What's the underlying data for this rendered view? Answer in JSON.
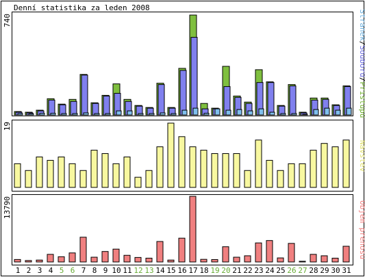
{
  "chart_data": [
    {
      "type": "bar",
      "title": "Denní statistika za leden 2008",
      "categories": [
        "1",
        "2",
        "3",
        "4",
        "5",
        "6",
        "7",
        "8",
        "9",
        "10",
        "11",
        "12",
        "13",
        "14",
        "15",
        "16",
        "17",
        "18",
        "19",
        "20",
        "21",
        "22",
        "23",
        "24",
        "25",
        "26",
        "27",
        "28",
        "29",
        "30",
        "31"
      ],
      "weekend_days": [
        "5",
        "6",
        "12",
        "13",
        "19",
        "20",
        "26",
        "27"
      ],
      "y_top_label": "740",
      "ylim": [
        0,
        740
      ],
      "series": [
        {
          "name": "Přístupů",
          "color": "#7fbf3f",
          "values": [
            25,
            20,
            35,
            120,
            80,
            115,
            300,
            90,
            145,
            230,
            115,
            70,
            55,
            235,
            55,
            345,
            740,
            85,
            50,
            360,
            140,
            95,
            335,
            245,
            70,
            225,
            20,
            125,
            125,
            75,
            215
          ]
        },
        {
          "name": "Souborů",
          "color": "#8080ee",
          "values": [
            20,
            15,
            30,
            110,
            75,
            100,
            295,
            85,
            140,
            160,
            100,
            65,
            50,
            225,
            50,
            330,
            575,
            45,
            45,
            210,
            130,
            85,
            240,
            240,
            65,
            215,
            15,
            110,
            115,
            70,
            210
          ]
        },
        {
          "name": "Stránek",
          "color": "#80c0ee",
          "values": [
            10,
            8,
            12,
            12,
            10,
            10,
            15,
            10,
            10,
            30,
            30,
            10,
            10,
            15,
            10,
            35,
            50,
            12,
            45,
            35,
            40,
            30,
            45,
            20,
            10,
            10,
            5,
            40,
            50,
            35,
            50
          ]
        }
      ],
      "legend_text": [
        "Stránek",
        "Souborů",
        "Přístupů"
      ]
    },
    {
      "type": "bar",
      "categories": [
        "1",
        "2",
        "3",
        "4",
        "5",
        "6",
        "7",
        "8",
        "9",
        "10",
        "11",
        "12",
        "13",
        "14",
        "15",
        "16",
        "17",
        "18",
        "19",
        "20",
        "21",
        "22",
        "23",
        "24",
        "25",
        "26",
        "27",
        "28",
        "29",
        "30",
        "31"
      ],
      "y_top_label": "19",
      "ylim": [
        0,
        19
      ],
      "series": [
        {
          "name": "Návštěv",
          "color": "#f8f8a0",
          "values": [
            7,
            5,
            9,
            8,
            9,
            7,
            5,
            11,
            10,
            7,
            9,
            3,
            5,
            12,
            19,
            15,
            12,
            11,
            10,
            10,
            10,
            5,
            14,
            8,
            5,
            7,
            7,
            11,
            13,
            12,
            14
          ]
        }
      ]
    },
    {
      "type": "bar",
      "categories": [
        "1",
        "2",
        "3",
        "4",
        "5",
        "6",
        "7",
        "8",
        "9",
        "10",
        "11",
        "12",
        "13",
        "14",
        "15",
        "16",
        "17",
        "18",
        "19",
        "20",
        "21",
        "22",
        "23",
        "24",
        "25",
        "26",
        "27",
        "28",
        "29",
        "30",
        "31"
      ],
      "y_top_label": "13790",
      "ylim": [
        0,
        13790
      ],
      "series": [
        {
          "name": "Objem přenosu",
          "color": "#f08080",
          "values": [
            520,
            300,
            400,
            1600,
            1100,
            1900,
            5200,
            1000,
            2200,
            2700,
            1400,
            950,
            800,
            4300,
            400,
            5000,
            13790,
            550,
            500,
            3200,
            1000,
            1300,
            4000,
            4500,
            850,
            3900,
            150,
            1600,
            1300,
            800,
            3300
          ]
        }
      ]
    }
  ]
}
